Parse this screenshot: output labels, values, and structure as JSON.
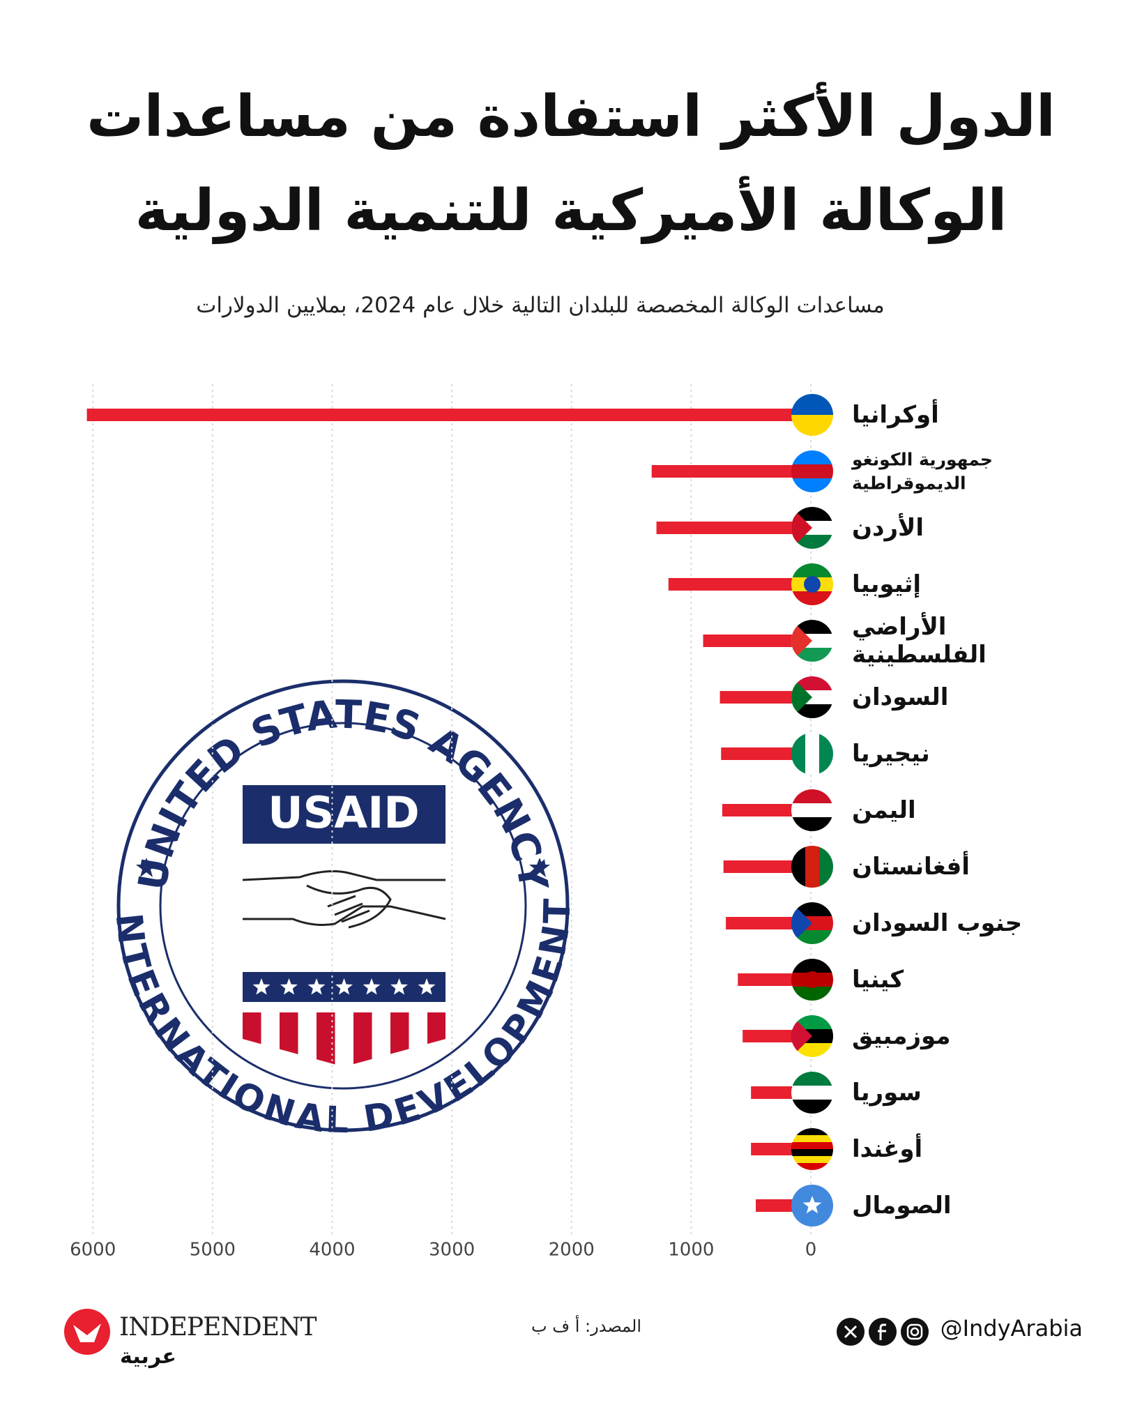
{
  "chart_data": {
    "type": "bar",
    "orientation": "horizontal",
    "reversed": true,
    "title": [
      "الدول الأكثر استفادة من مساعدات",
      "الوكالة الأميركية للتنمية الدولية"
    ],
    "subtitle": "مساعدات الوكالة المخصصة للبلدان التالية خلال عام 2024، بملايين الدولارات",
    "categories": [
      "أوكرانيا",
      "جمهورية الكونغو الديموقراطية",
      "الأردن",
      "إثيوبيا",
      "الأراضي الفلسطينية",
      "السودان",
      "نيجيريا",
      "اليمن",
      "أفغانستان",
      "جنوب السودان",
      "كينيا",
      "موزمبيق",
      "سوريا",
      "أوغندا",
      "الصومال"
    ],
    "values": [
      6050,
      1330,
      1290,
      1190,
      900,
      760,
      750,
      740,
      730,
      710,
      610,
      570,
      500,
      500,
      460
    ],
    "color": "#e8202f",
    "xlim": [
      0,
      6100
    ],
    "xticks": [
      0,
      1000,
      2000,
      3000,
      4000,
      5000,
      6000
    ],
    "grid": true
  },
  "logo": {
    "top_text": "UNITED STATES AGENCY",
    "bottom_text": "INTERNATIONAL DEVELOPMENT",
    "center_text": "USAID"
  },
  "footer": {
    "brand": "INDEPENDENT",
    "brand_sub": "عربية",
    "source": "المصدر: أ ف ب",
    "handle": "@IndyArabia"
  }
}
